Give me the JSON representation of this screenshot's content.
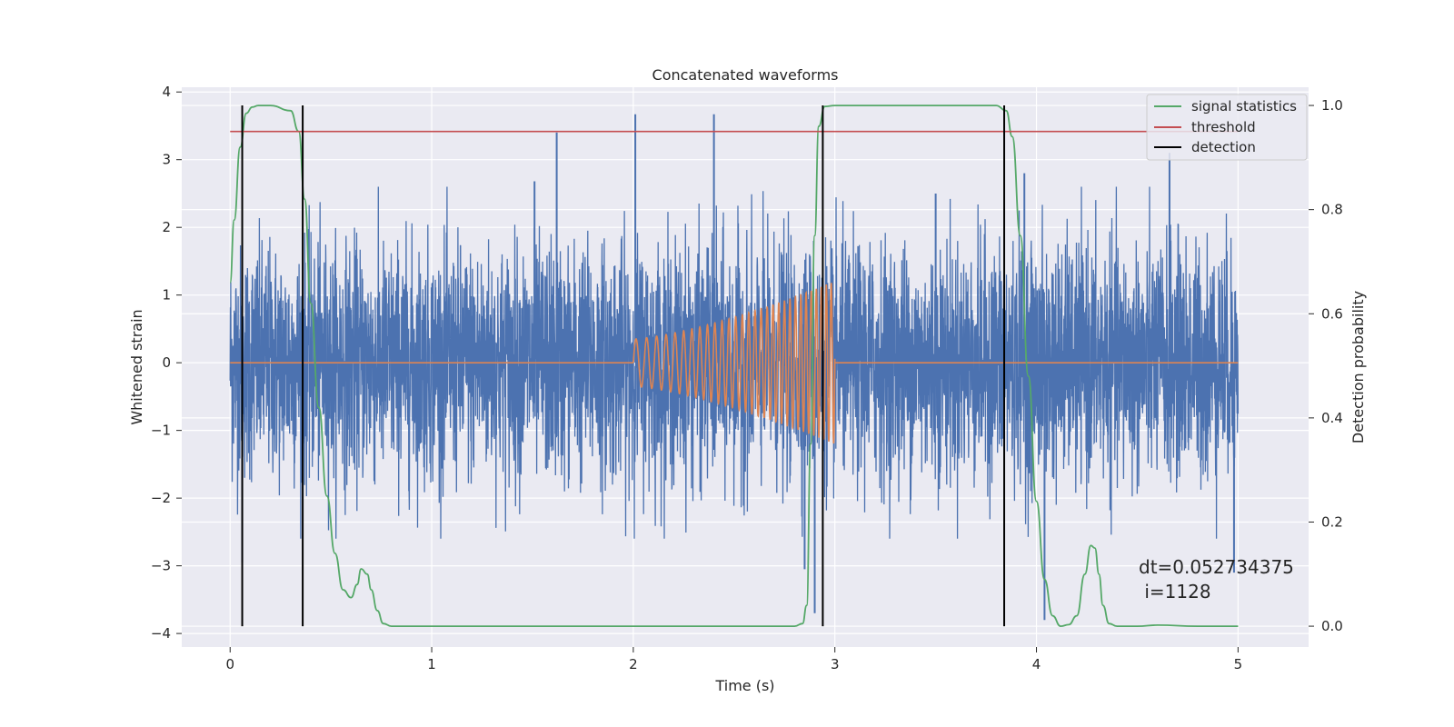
{
  "chart_data": {
    "type": "line",
    "title": "Concatenated waveforms",
    "xlabel": "Time (s)",
    "ylabel_left": "Whitened strain",
    "ylabel_right": "Detection probability",
    "xlim": [
      -0.24,
      5.35
    ],
    "ylim_left": [
      -4.2,
      4.07
    ],
    "ylim_right": [
      -0.04,
      1.035
    ],
    "xticks": [
      0,
      1,
      2,
      3,
      4,
      5
    ],
    "xtick_labels": [
      "0",
      "1",
      "2",
      "3",
      "4",
      "5"
    ],
    "yticks_left": [
      -4,
      -3,
      -2,
      -1,
      0,
      1,
      2,
      3,
      4
    ],
    "ytick_labels_left": [
      "−4",
      "−3",
      "−2",
      "−1",
      "0",
      "1",
      "2",
      "3",
      "4"
    ],
    "yticks_right": [
      0.0,
      0.2,
      0.4,
      0.6,
      0.8,
      1.0
    ],
    "ytick_labels_right": [
      "0.0",
      "0.2",
      "0.4",
      "0.6",
      "0.8",
      "1.0"
    ],
    "grid": true,
    "legend_position": "top-right",
    "colors": {
      "background": "#eaeaf2",
      "grid": "#ffffff",
      "strain": "#4c72b0",
      "injection": "#dd8452",
      "signal_statistics": "#55a868",
      "threshold": "#c44e52",
      "detection": "#000000"
    },
    "legend": [
      {
        "name": "signal statistics",
        "color": "#55a868"
      },
      {
        "name": "threshold",
        "color": "#c44e52"
      },
      {
        "name": "detection",
        "color": "#000000"
      }
    ],
    "series": [
      {
        "name": "whitened strain",
        "axis": "left",
        "x_range": [
          0,
          5
        ],
        "typical_amplitude": 0.9,
        "peaks": [
          [
            0.06,
            -2.95
          ],
          [
            1.51,
            2.68
          ],
          [
            1.62,
            3.4
          ],
          [
            2.01,
            3.67
          ],
          [
            2.4,
            3.67
          ],
          [
            2.85,
            -3.05
          ],
          [
            2.9,
            -3.7
          ],
          [
            3.5,
            2.5
          ],
          [
            3.94,
            2.8
          ],
          [
            4.04,
            -3.8
          ],
          [
            4.66,
            3.1
          ],
          [
            4.98,
            -3.1
          ]
        ]
      },
      {
        "name": "injected waveform",
        "axis": "left",
        "x_range": [
          2.0,
          3.0
        ],
        "amplitude_start": 0.35,
        "amplitude_end": 1.2,
        "frequency_start_hz": 18,
        "frequency_end_hz": 42,
        "baseline": 0
      },
      {
        "name": "signal statistics",
        "axis": "right",
        "x": [
          0.0,
          0.02,
          0.05,
          0.08,
          0.11,
          0.14,
          0.2,
          0.3,
          0.34,
          0.37,
          0.4,
          0.44,
          0.48,
          0.52,
          0.56,
          0.6,
          0.63,
          0.65,
          0.68,
          0.7,
          0.73,
          0.76,
          0.8,
          1.0,
          2.0,
          2.5,
          2.8,
          2.84,
          2.86,
          2.88,
          2.9,
          2.92,
          2.95,
          3.0,
          3.5,
          3.8,
          3.85,
          3.88,
          3.92,
          3.96,
          4.0,
          4.04,
          4.08,
          4.12,
          4.16,
          4.2,
          4.24,
          4.27,
          4.29,
          4.31,
          4.33,
          4.36,
          4.4,
          4.5,
          4.6,
          4.8,
          5.0
        ],
        "values": [
          0.66,
          0.78,
          0.92,
          0.985,
          0.997,
          1.0,
          1.0,
          0.99,
          0.95,
          0.82,
          0.62,
          0.42,
          0.25,
          0.14,
          0.07,
          0.055,
          0.08,
          0.11,
          0.1,
          0.07,
          0.03,
          0.005,
          0.0,
          0.0,
          0.0,
          0.0,
          0.0,
          0.005,
          0.04,
          0.35,
          0.75,
          0.96,
          0.998,
          1.0,
          1.0,
          1.0,
          0.99,
          0.94,
          0.75,
          0.48,
          0.24,
          0.09,
          0.02,
          0.0,
          0.003,
          0.02,
          0.1,
          0.155,
          0.15,
          0.1,
          0.04,
          0.005,
          0.0,
          0.0,
          0.002,
          0.0,
          0.0
        ]
      },
      {
        "name": "threshold",
        "axis": "right",
        "x": [
          0,
          5
        ],
        "values": [
          0.95,
          0.95
        ]
      }
    ],
    "detections_x": [
      0.06,
      0.36,
      2.94,
      3.84
    ],
    "annotation": {
      "line1": "dt=0.052734375",
      "line2": " i=1128"
    }
  }
}
